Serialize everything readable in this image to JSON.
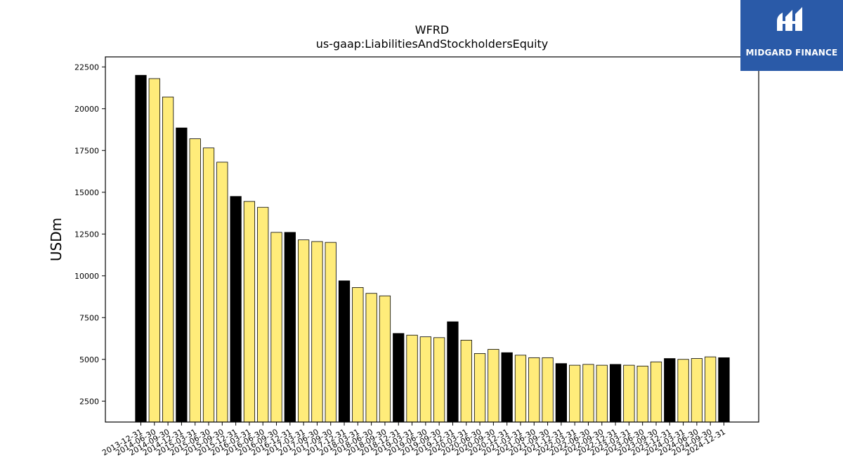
{
  "chart_data": {
    "type": "bar",
    "title": "WFRD",
    "subtitle": "us-gaap:LiabilitiesAndStockholdersEquity",
    "ylabel": "USDm",
    "xlabel": "",
    "ylim": [
      1250,
      23100
    ],
    "yticks": [
      2500,
      5000,
      7500,
      10000,
      12500,
      15000,
      17500,
      20000,
      22500
    ],
    "categories": [
      "2013-12-31",
      "2014-06-30",
      "2014-09-30",
      "2014-12-31",
      "2015-03-31",
      "2015-06-30",
      "2015-09-30",
      "2015-12-31",
      "2016-03-31",
      "2016-06-30",
      "2016-09-30",
      "2016-12-31",
      "2017-03-31",
      "2017-06-30",
      "2017-09-30",
      "2017-12-31",
      "2018-03-31",
      "2018-06-30",
      "2018-09-30",
      "2018-12-31",
      "2019-03-31",
      "2019-06-30",
      "2019-09-30",
      "2019-12-31",
      "2020-03-31",
      "2020-06-30",
      "2020-09-30",
      "2020-12-31",
      "2021-03-31",
      "2021-06-30",
      "2021-09-30",
      "2021-12-31",
      "2022-03-31",
      "2022-06-30",
      "2022-09-30",
      "2022-12-31",
      "2023-03-31",
      "2023-06-30",
      "2023-09-30",
      "2023-12-31",
      "2024-03-31",
      "2024-06-30",
      "2024-09-30",
      "2024-12-31"
    ],
    "values": [
      22000,
      21800,
      20700,
      18850,
      18200,
      17650,
      16800,
      14750,
      14450,
      14100,
      12600,
      12600,
      12150,
      12050,
      12000,
      9700,
      9300,
      8950,
      8800,
      6550,
      6450,
      6350,
      6300,
      7250,
      6150,
      5350,
      5600,
      5400,
      5250,
      5100,
      5100,
      4750,
      4650,
      4700,
      4650,
      4700,
      4650,
      4600,
      4850,
      5050,
      5000,
      5050,
      5150,
      5100
    ],
    "year_end_color": "#000000",
    "quarter_color": "#ffec7a",
    "edge_color": "#000000",
    "grid": false
  },
  "logo": {
    "text": "MIDGARD FINANCE",
    "background": "#2a5aa8"
  }
}
